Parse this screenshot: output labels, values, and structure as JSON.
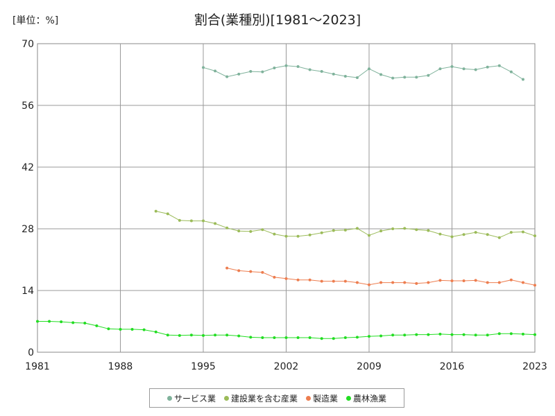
{
  "chart_data": {
    "type": "line",
    "title": "割合(業種別)[1981～2023]",
    "unit_label": "[単位：%]",
    "xlim": [
      1981,
      2023
    ],
    "ylim": [
      0,
      70
    ],
    "x_ticks": [
      1981,
      1988,
      1995,
      2002,
      2009,
      2016,
      2023
    ],
    "y_ticks": [
      0,
      14,
      28,
      42,
      56,
      70
    ],
    "grid": true,
    "legend_position": "bottom",
    "series": [
      {
        "name": "サービス業",
        "color": "#7fb29b",
        "x": [
          1995,
          1996,
          1997,
          1998,
          1999,
          2000,
          2001,
          2002,
          2003,
          2004,
          2005,
          2006,
          2007,
          2008,
          2009,
          2010,
          2011,
          2012,
          2013,
          2014,
          2015,
          2016,
          2017,
          2018,
          2019,
          2020,
          2021,
          2022
        ],
        "values": [
          64.6,
          63.8,
          62.5,
          63.1,
          63.7,
          63.6,
          64.5,
          65.0,
          64.8,
          64.1,
          63.7,
          63.1,
          62.6,
          62.3,
          64.3,
          63.0,
          62.2,
          62.4,
          62.4,
          62.8,
          64.3,
          64.8,
          64.3,
          64.1,
          64.7,
          65.0,
          63.6,
          61.9
        ]
      },
      {
        "name": "建設業を含む産業",
        "color": "#9bbb59",
        "x": [
          1991,
          1992,
          1993,
          1994,
          1995,
          1996,
          1997,
          1998,
          1999,
          2000,
          2001,
          2002,
          2003,
          2004,
          2005,
          2006,
          2007,
          2008,
          2009,
          2010,
          2011,
          2012,
          2013,
          2014,
          2015,
          2016,
          2017,
          2018,
          2019,
          2020,
          2021,
          2022,
          2023
        ],
        "values": [
          32.0,
          31.4,
          29.9,
          29.8,
          29.8,
          29.2,
          28.2,
          27.5,
          27.4,
          27.8,
          26.8,
          26.3,
          26.3,
          26.6,
          27.1,
          27.6,
          27.7,
          28.1,
          26.5,
          27.5,
          28.0,
          28.1,
          27.8,
          27.6,
          26.8,
          26.2,
          26.7,
          27.2,
          26.7,
          26.0,
          27.2,
          27.3,
          26.4
        ]
      },
      {
        "name": "製造業",
        "color": "#ed7d4f",
        "x": [
          1997,
          1998,
          1999,
          2000,
          2001,
          2002,
          2003,
          2004,
          2005,
          2006,
          2007,
          2008,
          2009,
          2010,
          2011,
          2012,
          2013,
          2014,
          2015,
          2016,
          2017,
          2018,
          2019,
          2020,
          2021,
          2022,
          2023
        ],
        "values": [
          19.1,
          18.5,
          18.3,
          18.1,
          17.0,
          16.7,
          16.4,
          16.4,
          16.1,
          16.1,
          16.1,
          15.8,
          15.3,
          15.8,
          15.8,
          15.8,
          15.6,
          15.8,
          16.3,
          16.2,
          16.2,
          16.3,
          15.8,
          15.8,
          16.4,
          15.8,
          15.2
        ]
      },
      {
        "name": "農林漁業",
        "color": "#22dd22",
        "x": [
          1981,
          1982,
          1983,
          1984,
          1985,
          1986,
          1987,
          1988,
          1989,
          1990,
          1991,
          1992,
          1993,
          1994,
          1995,
          1996,
          1997,
          1998,
          1999,
          2000,
          2001,
          2002,
          2003,
          2004,
          2005,
          2006,
          2007,
          2008,
          2009,
          2010,
          2011,
          2012,
          2013,
          2014,
          2015,
          2016,
          2017,
          2018,
          2019,
          2020,
          2021,
          2022,
          2023
        ],
        "values": [
          7.0,
          7.0,
          6.9,
          6.7,
          6.6,
          6.0,
          5.3,
          5.2,
          5.2,
          5.1,
          4.6,
          3.9,
          3.8,
          3.9,
          3.8,
          3.9,
          3.9,
          3.7,
          3.4,
          3.3,
          3.3,
          3.3,
          3.3,
          3.3,
          3.1,
          3.1,
          3.3,
          3.4,
          3.6,
          3.7,
          3.9,
          3.9,
          4.0,
          4.0,
          4.1,
          4.0,
          4.0,
          3.9,
          3.9,
          4.2,
          4.2,
          4.1,
          4.0
        ]
      }
    ]
  }
}
